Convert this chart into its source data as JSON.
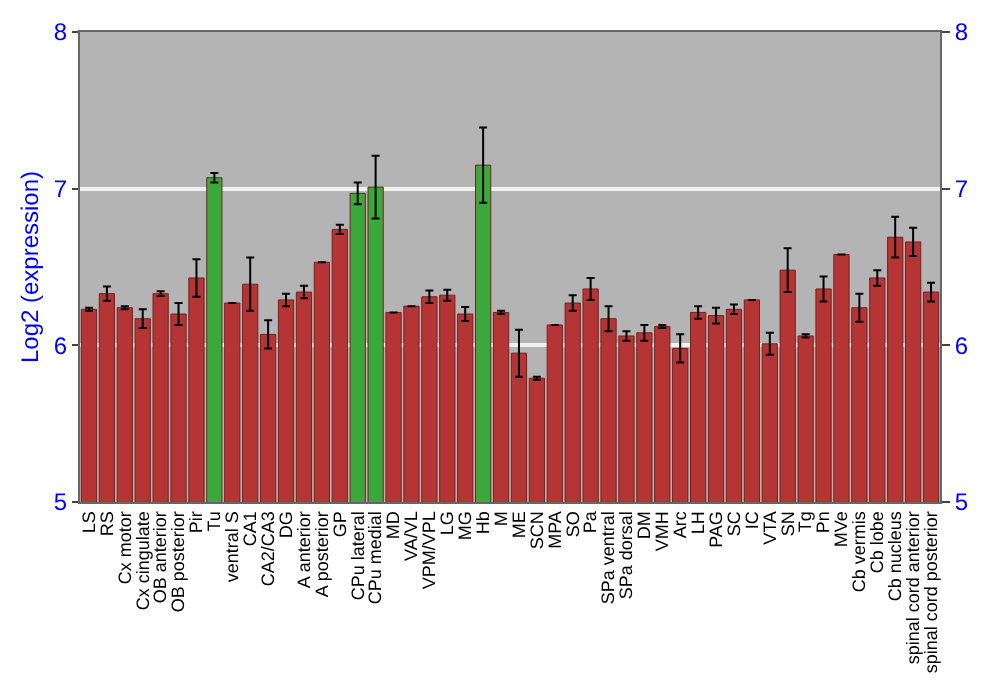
{
  "chart_data": {
    "type": "bar",
    "ylabel": "Log2 (expression)",
    "categories": [
      "LS",
      "RS",
      "Cx motor",
      "Cx cingulate",
      "OB anterior",
      "OB posterior",
      "Pir",
      "Tu",
      "ventral S",
      "CA1",
      "CA2/CA3",
      "DG",
      "A anterior",
      "A posterior",
      "GP",
      "CPu lateral",
      "CPu medial",
      "MD",
      "VA/VL",
      "VPM/VPL",
      "LG",
      "MG",
      "Hb",
      "M",
      "ME",
      "SCN",
      "MPA",
      "SO",
      "Pa",
      "SPa ventral",
      "SPa dorsal",
      "DM",
      "VMH",
      "Arc",
      "LH",
      "PAG",
      "SC",
      "IC",
      "VTA",
      "SN",
      "Tg",
      "Pn",
      "MVe",
      "Cb vermis",
      "Cb lobe",
      "Cb nucleus",
      "spinal cord anterior",
      "spinal cord posterior"
    ],
    "values": [
      6.23,
      6.33,
      6.24,
      6.17,
      6.33,
      6.2,
      6.43,
      7.07,
      6.27,
      6.39,
      6.07,
      6.29,
      6.34,
      6.53,
      6.74,
      6.97,
      7.01,
      6.21,
      6.25,
      6.31,
      6.32,
      6.2,
      7.15,
      6.21,
      5.95,
      5.79,
      6.13,
      6.27,
      6.36,
      6.17,
      6.06,
      6.08,
      6.12,
      5.98,
      6.21,
      6.19,
      6.23,
      6.29,
      6.01,
      6.48,
      6.06,
      6.36,
      6.58,
      6.24,
      6.43,
      6.69,
      6.66,
      6.34
    ],
    "errors": [
      0.01,
      0.045,
      0.01,
      0.06,
      0.015,
      0.07,
      0.12,
      0.03,
      null,
      0.17,
      0.09,
      0.04,
      0.04,
      null,
      0.03,
      0.07,
      0.2,
      null,
      null,
      0.04,
      0.035,
      0.045,
      0.24,
      0.01,
      0.15,
      0.01,
      null,
      0.05,
      0.07,
      0.08,
      0.03,
      0.05,
      0.01,
      0.09,
      0.04,
      0.05,
      0.03,
      null,
      0.07,
      0.14,
      0.01,
      0.08,
      null,
      0.09,
      0.05,
      0.13,
      0.09,
      0.06
    ],
    "colors": [
      "#b53535",
      "#b53535",
      "#b53535",
      "#b53535",
      "#b53535",
      "#b53535",
      "#b53535",
      "#3aa83a",
      "#b53535",
      "#b53535",
      "#b53535",
      "#b53535",
      "#b53535",
      "#b53535",
      "#b53535",
      "#3aa83a",
      "#3aa83a",
      "#b53535",
      "#b53535",
      "#b53535",
      "#b53535",
      "#b53535",
      "#3aa83a",
      "#b53535",
      "#b53535",
      "#b53535",
      "#b53535",
      "#b53535",
      "#b53535",
      "#b53535",
      "#b53535",
      "#b53535",
      "#b53535",
      "#b53535",
      "#b53535",
      "#b53535",
      "#b53535",
      "#b53535",
      "#b53535",
      "#b53535",
      "#b53535",
      "#b53535",
      "#b53535",
      "#b53535",
      "#b53535",
      "#b53535",
      "#b53535",
      "#b53535"
    ],
    "ylim": [
      5,
      8
    ],
    "yticks": [
      5,
      6,
      7,
      8
    ],
    "y2lim": [
      5,
      8
    ],
    "y2ticks": [
      5,
      6,
      7,
      8
    ],
    "grid": "y"
  }
}
